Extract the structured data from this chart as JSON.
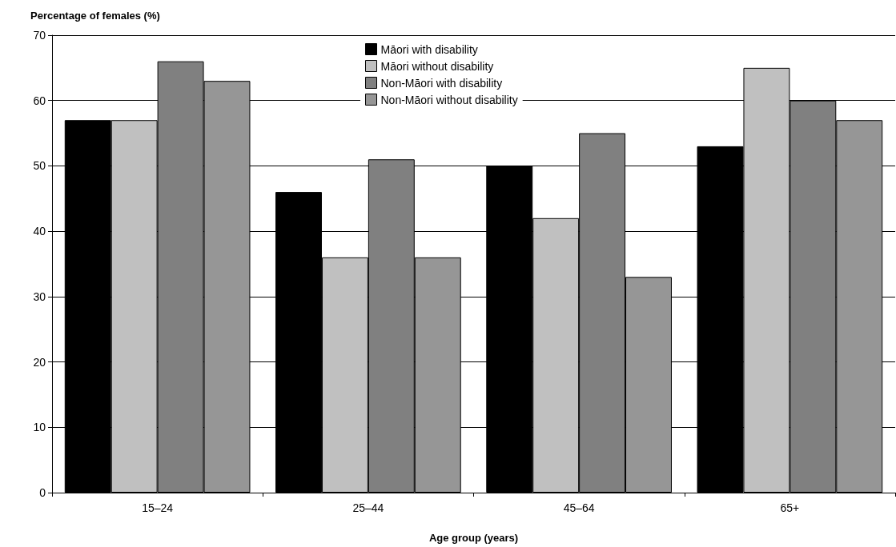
{
  "chart_data": {
    "type": "bar",
    "xlabel": "Age group (years)",
    "ylabel": "Percentage of females (%)",
    "categories": [
      "15–24",
      "25–44",
      "45–64",
      "65+"
    ],
    "series": [
      {
        "name": "Māori with disability",
        "color": "#000000",
        "values": [
          57,
          46,
          50,
          53
        ]
      },
      {
        "name": "Māori without disability",
        "color": "#c0c0c0",
        "values": [
          57,
          36,
          42,
          65
        ]
      },
      {
        "name": "Non-Māori with disability",
        "color": "#808080",
        "values": [
          66,
          51,
          55,
          60
        ]
      },
      {
        "name": "Non-Māori without disability",
        "color": "#969696",
        "values": [
          63,
          36,
          33,
          57
        ]
      }
    ],
    "ylim": [
      0,
      70
    ],
    "yticks": [
      0,
      10,
      20,
      30,
      40,
      50,
      60,
      70
    ],
    "grid": "y",
    "legend": "top"
  }
}
